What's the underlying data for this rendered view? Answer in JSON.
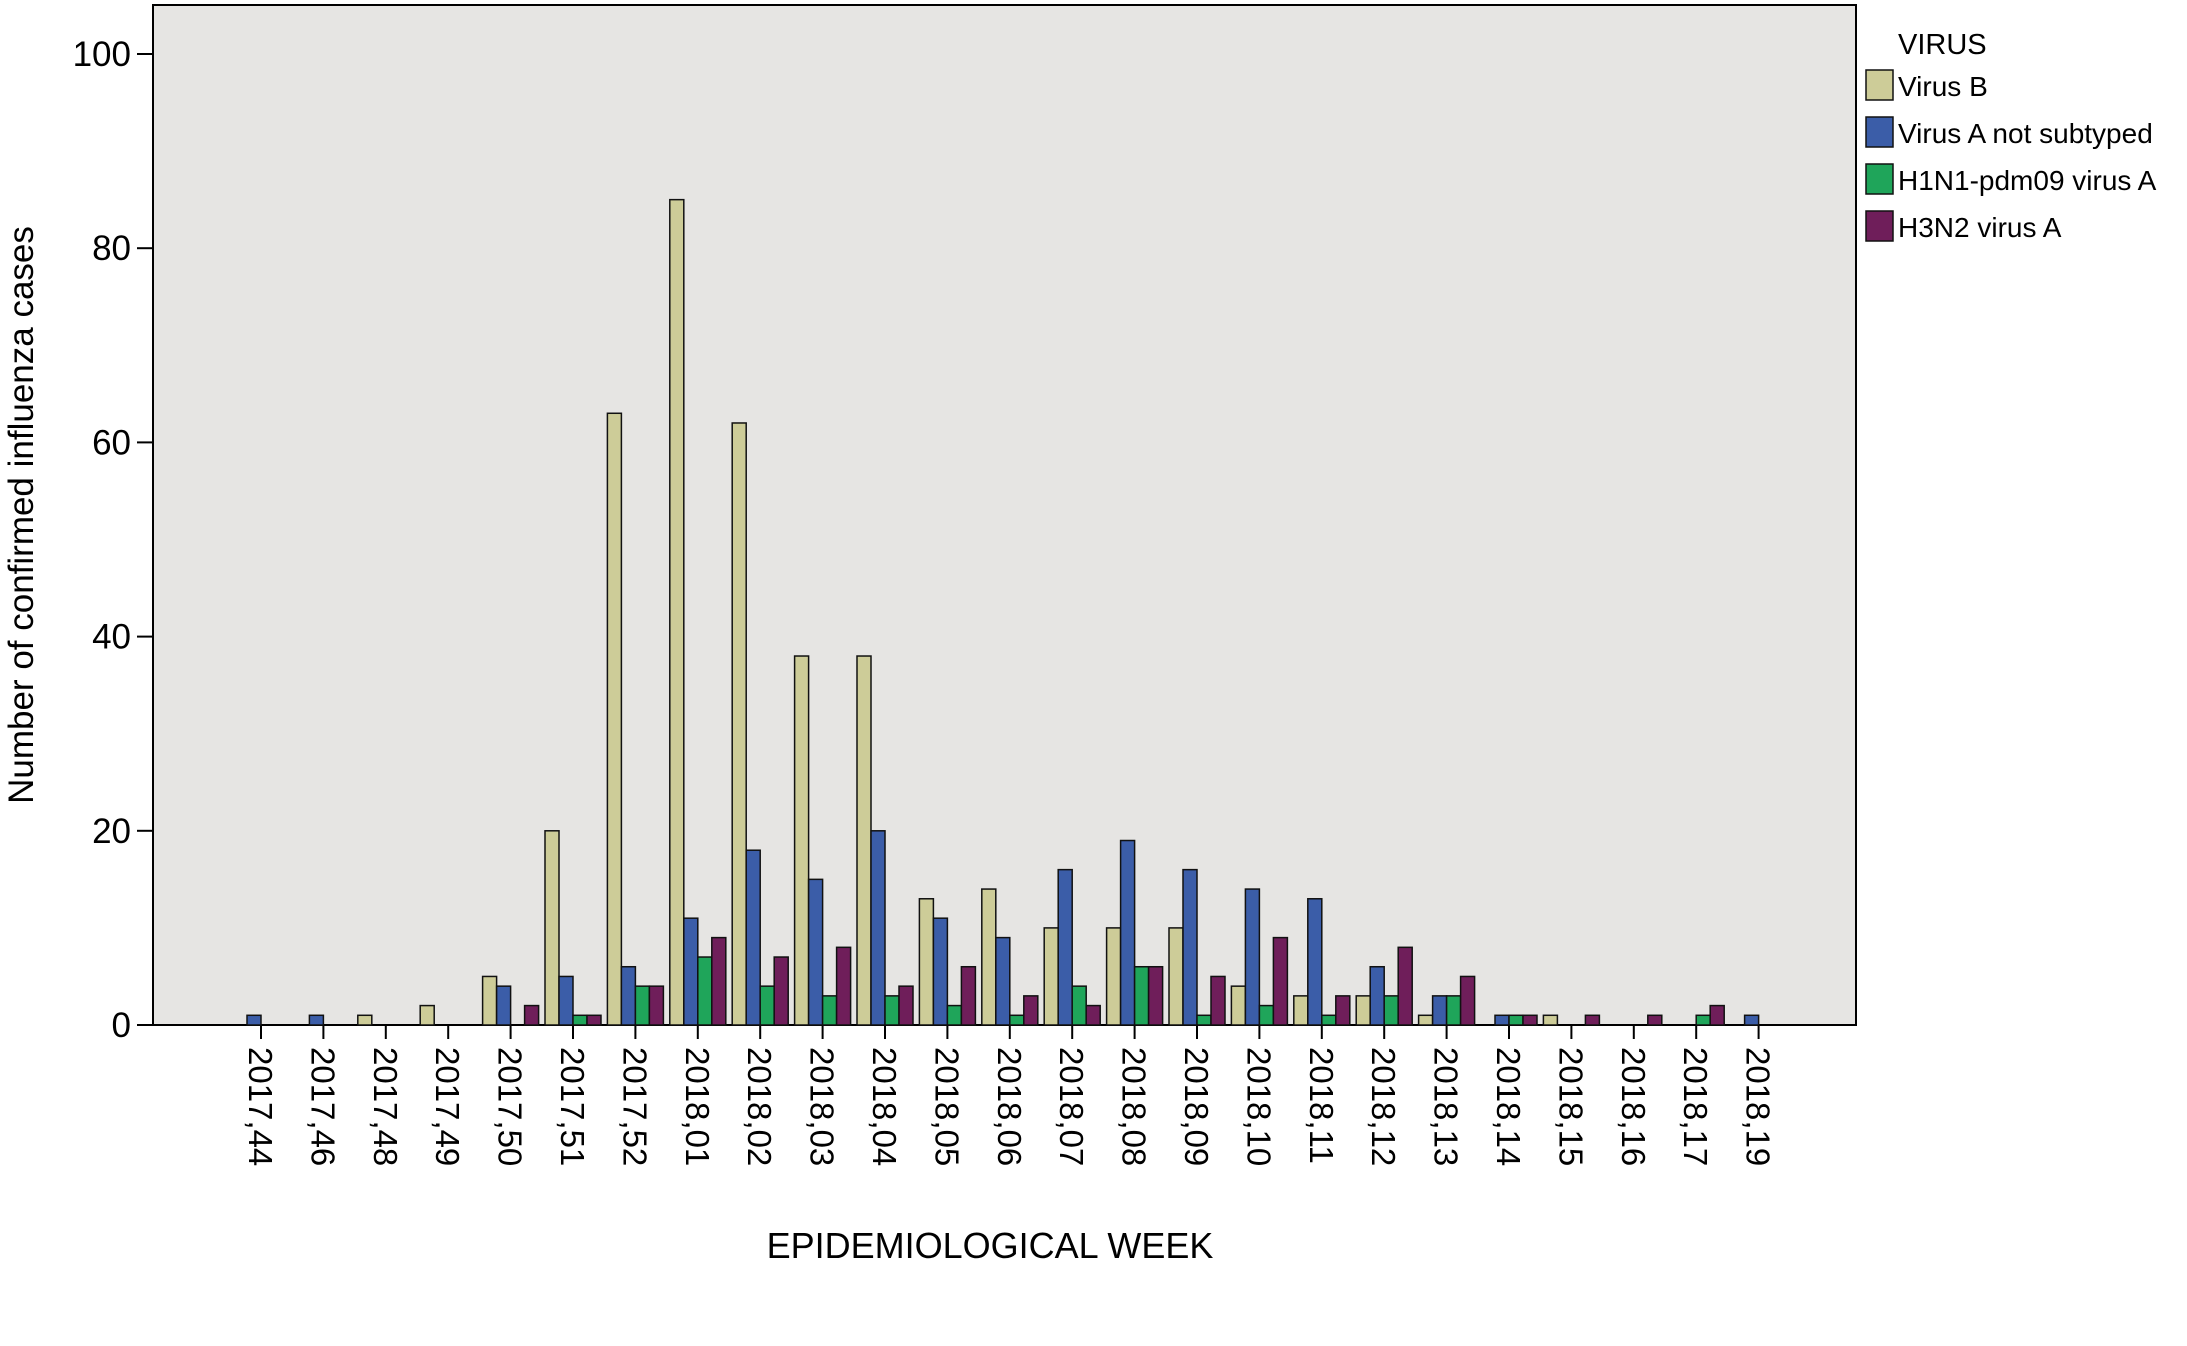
{
  "chart_data": {
    "type": "bar",
    "xlabel": "EPIDEMIOLOGICAL WEEK",
    "ylabel": "Number of confirmed influenza cases",
    "ylim": [
      0,
      105
    ],
    "yticks": [
      0,
      20,
      40,
      60,
      80,
      100
    ],
    "grid": false,
    "legend": {
      "title": "VIRUS",
      "position": "right"
    },
    "categories": [
      "2017,44",
      "2017,46",
      "2017,48",
      "2017,49",
      "2017,50",
      "2017,51",
      "2017,52",
      "2018,01",
      "2018,02",
      "2018,03",
      "2018,04",
      "2018,05",
      "2018,06",
      "2018,07",
      "2018,08",
      "2018,09",
      "2018,10",
      "2018,11",
      "2018,12",
      "2018,13",
      "2018,14",
      "2018,15",
      "2018,16",
      "2018,17",
      "2018,19"
    ],
    "series": [
      {
        "name": "Virus B",
        "color": "#cdcc98",
        "values": [
          0,
          0,
          1,
          2,
          5,
          20,
          63,
          85,
          62,
          38,
          38,
          13,
          14,
          10,
          10,
          10,
          4,
          3,
          3,
          1,
          0,
          1,
          0,
          0,
          0
        ]
      },
      {
        "name": "Virus A not subtyped",
        "color": "#3b5da8",
        "values": [
          1,
          1,
          0,
          0,
          4,
          5,
          6,
          11,
          18,
          15,
          20,
          11,
          9,
          16,
          19,
          16,
          14,
          13,
          6,
          3,
          1,
          0,
          0,
          0,
          1
        ]
      },
      {
        "name": "H1N1-pdm09 virus A",
        "color": "#1fa55a",
        "values": [
          0,
          0,
          0,
          0,
          0,
          1,
          4,
          7,
          4,
          3,
          3,
          2,
          1,
          4,
          6,
          1,
          2,
          1,
          3,
          3,
          1,
          0,
          0,
          1,
          0
        ]
      },
      {
        "name": "H3N2 virus A",
        "color": "#6f1e5a",
        "values": [
          0,
          0,
          0,
          0,
          2,
          1,
          4,
          9,
          7,
          8,
          4,
          6,
          3,
          2,
          6,
          5,
          9,
          3,
          8,
          5,
          1,
          1,
          1,
          2,
          0
        ]
      }
    ]
  }
}
